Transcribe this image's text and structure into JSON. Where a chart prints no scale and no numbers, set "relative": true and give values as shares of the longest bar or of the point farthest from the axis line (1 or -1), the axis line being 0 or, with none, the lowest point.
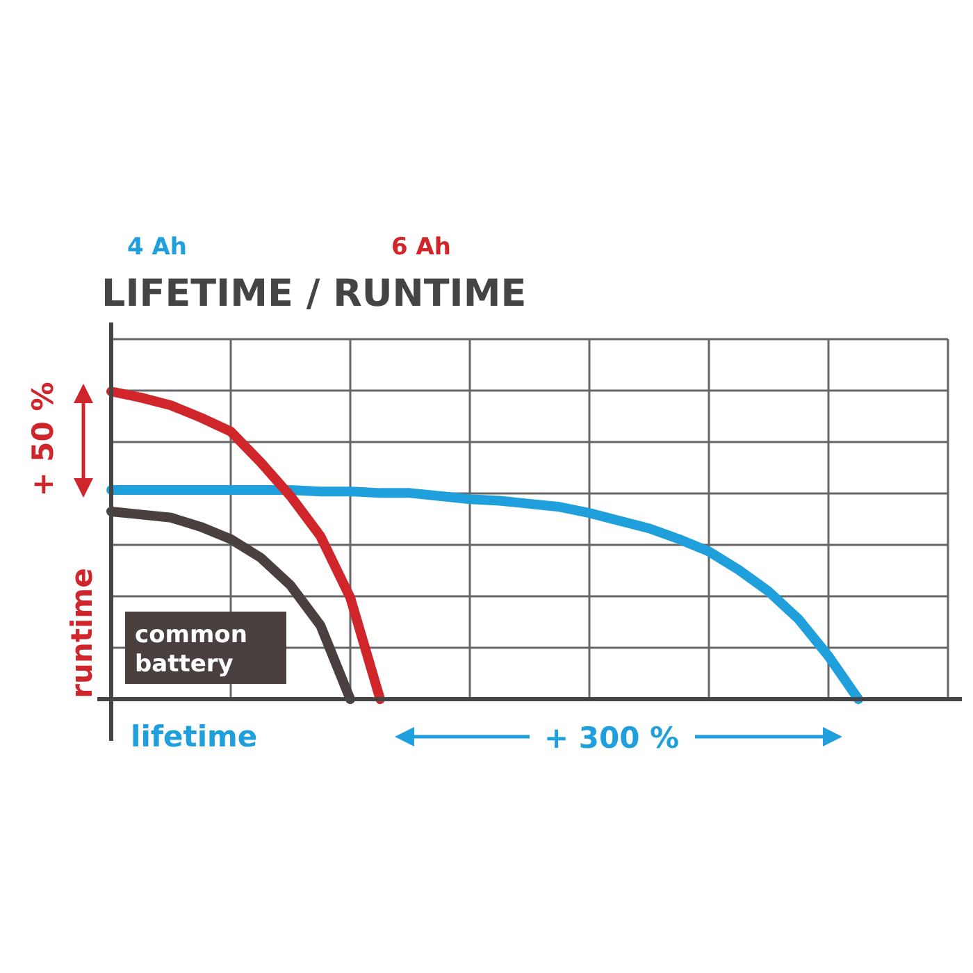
{
  "chart_data": {
    "type": "line",
    "relative": true,
    "title": "LIFETIME / RUNTIME",
    "xlabel": "lifetime",
    "ylabel": "runtime",
    "categories": [
      null,
      null,
      null,
      null,
      null,
      null,
      null,
      null,
      null,
      null,
      null,
      null,
      null,
      null,
      null,
      null,
      null,
      null,
      null,
      null,
      null,
      null,
      null,
      null,
      null,
      null,
      null,
      null,
      null
    ],
    "grid": true,
    "marker": "none",
    "line_style": "solid",
    "annotations": [
      "+ 50 %",
      "+ 300 %"
    ],
    "series": [
      {
        "name": "4 Ah",
        "color": "#1fa0dc",
        "values": [
          0.68,
          0.68,
          0.68,
          0.68,
          0.68,
          0.68,
          0.68,
          0.675,
          0.675,
          0.67,
          0.67,
          0.66,
          0.65,
          0.645,
          0.635,
          0.625,
          0.605,
          0.58,
          0.555,
          0.52,
          0.48,
          0.42,
          0.35,
          0.26,
          0.14,
          0,
          null,
          null,
          null
        ]
      },
      {
        "name": "6 Ah",
        "color": "#d0262b",
        "values": [
          1,
          0.98,
          0.955,
          0.915,
          0.87,
          0.77,
          0.66,
          0.53,
          0.33,
          0,
          null,
          null,
          null,
          null,
          null,
          null,
          null,
          null,
          null,
          null,
          null,
          null,
          null,
          null,
          null,
          null,
          null,
          null,
          null
        ]
      },
      {
        "name": "common battery",
        "color": "#4a4040",
        "values": [
          0.61,
          0.6,
          0.59,
          0.56,
          0.52,
          0.46,
          0.37,
          0.24,
          0,
          null,
          null,
          null,
          null,
          null,
          null,
          null,
          null,
          null,
          null,
          null,
          null,
          null,
          null,
          null,
          null,
          null,
          null,
          null,
          null
        ]
      }
    ]
  }
}
